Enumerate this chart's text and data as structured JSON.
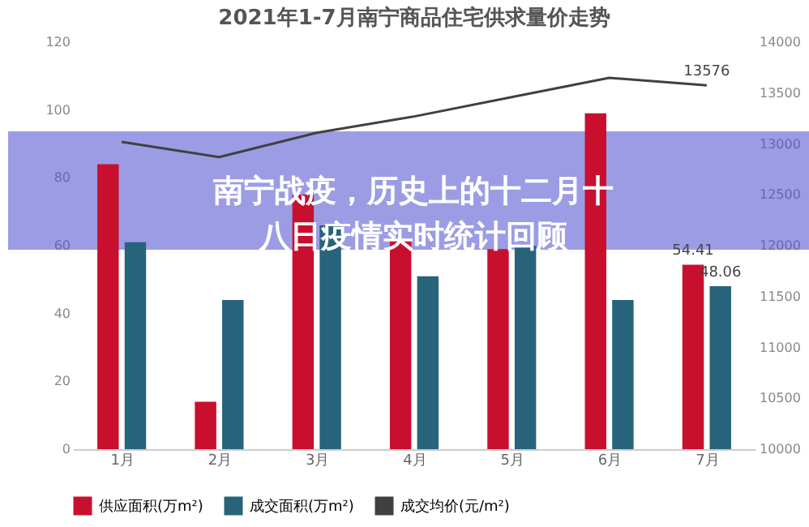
{
  "chart_data": {
    "type": "bar",
    "title": "2021年1-7月南宁商品住宅供求量价走势",
    "categories": [
      "1月",
      "2月",
      "3月",
      "4月",
      "5月",
      "6月",
      "7月"
    ],
    "series": [
      {
        "name": "供应面积(万m²)",
        "color": "#c8102e",
        "values": [
          84,
          14,
          75,
          62,
          59,
          99,
          54.41
        ],
        "value_labels": [
          null,
          null,
          null,
          null,
          null,
          null,
          "54.41"
        ]
      },
      {
        "name": "成交面积(万m²)",
        "color": "#27647b",
        "values": [
          61,
          44,
          66,
          51,
          60,
          44,
          48.06
        ],
        "value_labels": [
          null,
          null,
          null,
          null,
          null,
          null,
          "48.06"
        ]
      },
      {
        "name": "成交均价(元/m²)",
        "color": "#404040",
        "type": "line",
        "axis": "y2",
        "values": [
          13020,
          12870,
          13110,
          13270,
          13460,
          13650,
          13576
        ],
        "value_labels": [
          null,
          null,
          null,
          null,
          null,
          null,
          "13576"
        ]
      }
    ],
    "ylim": [
      0,
      120
    ],
    "yticks": [
      0,
      20,
      40,
      60,
      80,
      100,
      120
    ],
    "y2lim": [
      10000,
      14000
    ],
    "y2ticks": [
      10000,
      10500,
      11000,
      11500,
      12000,
      12500,
      13000,
      13500,
      14000
    ],
    "grid": false,
    "legend": "bottom",
    "annotations": [
      "南宁战疫，历史上的十二月十八日疫情实时统计回顾"
    ]
  }
}
